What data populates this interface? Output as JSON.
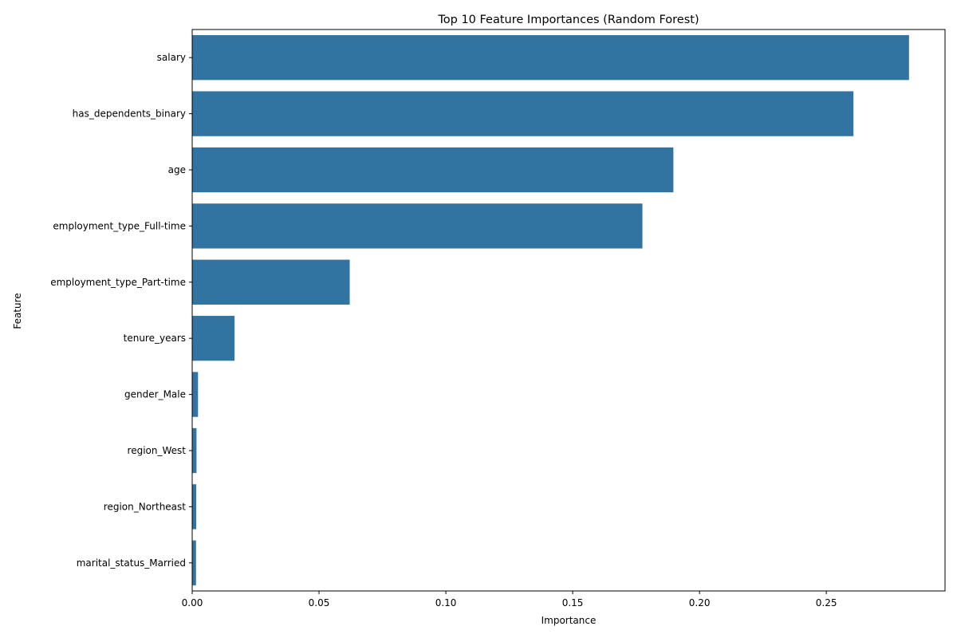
{
  "chart_data": {
    "type": "bar",
    "orientation": "horizontal",
    "title": "Top 10 Feature Importances (Random Forest)",
    "xlabel": "Importance",
    "ylabel": "Feature",
    "categories": [
      "salary",
      "has_dependents_binary",
      "age",
      "employment_type_Full-time",
      "employment_type_Part-time",
      "tenure_years",
      "gender_Male",
      "region_West",
      "region_Northeast",
      "marital_status_Married"
    ],
    "values": [
      0.2826,
      0.2607,
      0.1897,
      0.1775,
      0.0621,
      0.0167,
      0.0023,
      0.0017,
      0.0016,
      0.0015
    ],
    "xlim": [
      0,
      0.2968
    ],
    "xticks": [
      0.0,
      0.05,
      0.1,
      0.15,
      0.2,
      0.25
    ],
    "xtick_labels": [
      "0.00",
      "0.05",
      "0.10",
      "0.15",
      "0.20",
      "0.25"
    ],
    "grid": false,
    "bar_color": "#3274a1"
  }
}
